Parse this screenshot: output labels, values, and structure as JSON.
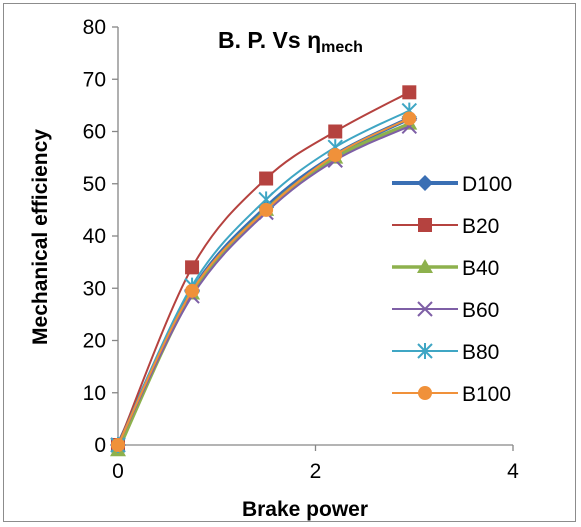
{
  "chart_data": {
    "type": "line",
    "title": "B. P. Vs",
    "title_symbol": "η",
    "title_subscript": "mech",
    "xlabel": "Brake power",
    "ylabel": "Mechanical efficiency",
    "xlim": [
      0,
      4
    ],
    "ylim": [
      0,
      80
    ],
    "xticks": [
      0,
      2,
      4
    ],
    "yticks": [
      0,
      10,
      20,
      30,
      40,
      50,
      60,
      70,
      80
    ],
    "grid": false,
    "legend_position": "right",
    "series": [
      {
        "name": "D100",
        "color": "#3a6fb4",
        "marker": "diamond",
        "x": [
          0,
          0.75,
          1.5,
          2.2,
          2.95
        ],
        "y": [
          0,
          29.5,
          45.5,
          55.5,
          62.5
        ]
      },
      {
        "name": "B20",
        "color": "#b5423f",
        "marker": "square",
        "x": [
          0,
          0.75,
          1.5,
          2.2,
          2.95
        ],
        "y": [
          0,
          34,
          51,
          60,
          67.5
        ]
      },
      {
        "name": "B40",
        "color": "#8db14d",
        "marker": "triangle",
        "x": [
          0,
          0.75,
          1.5,
          2.2,
          2.95
        ],
        "y": [
          -1,
          29,
          45,
          55,
          61.5
        ]
      },
      {
        "name": "B60",
        "color": "#7e5fa6",
        "marker": "x",
        "x": [
          0,
          0.75,
          1.5,
          2.2,
          2.95
        ],
        "y": [
          0,
          28.5,
          44.5,
          54.5,
          61
        ]
      },
      {
        "name": "B80",
        "color": "#3fa6c4",
        "marker": "star",
        "x": [
          0,
          0.75,
          1.5,
          2.2,
          2.95
        ],
        "y": [
          0,
          30.5,
          47,
          57,
          64
        ]
      },
      {
        "name": "B100",
        "color": "#f0913a",
        "marker": "circle",
        "x": [
          0,
          0.75,
          1.5,
          2.2,
          2.95
        ],
        "y": [
          0,
          29.5,
          45,
          55.5,
          62.5
        ]
      }
    ]
  }
}
